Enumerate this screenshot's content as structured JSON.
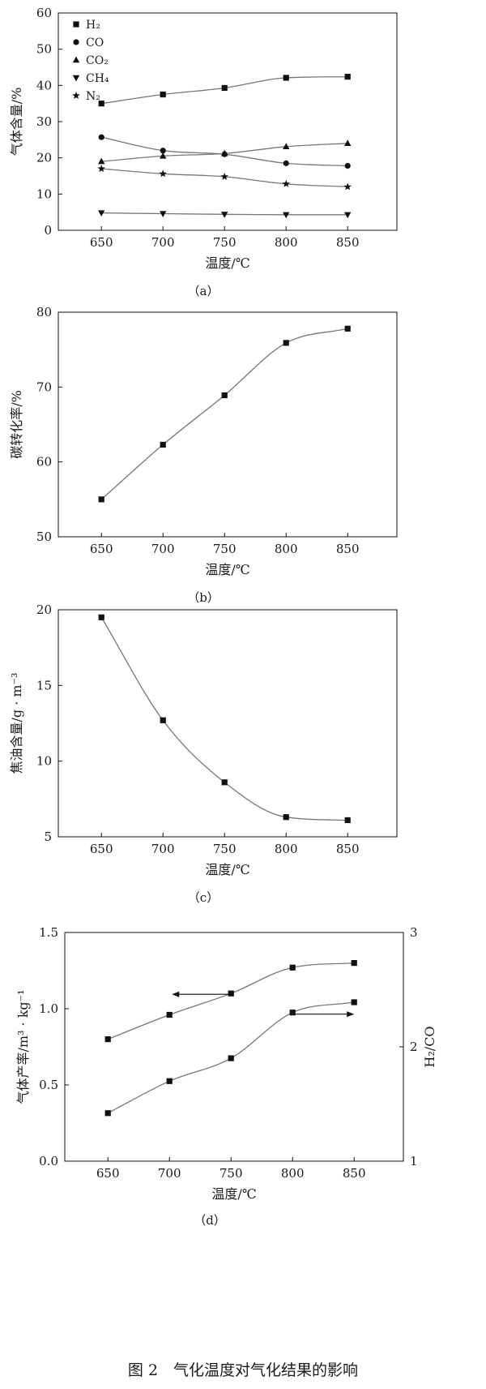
{
  "caption": "图 2　气化温度对气化结果的影响",
  "chart_data": [
    {
      "type": "line",
      "panel_label": "（a）",
      "xlabel": "温度/℃",
      "ylabel": "气体含量/%",
      "x": [
        650,
        700,
        750,
        800,
        850
      ],
      "xticks": [
        "650",
        "700",
        "750",
        "800",
        "850"
      ],
      "xlim": [
        615,
        890
      ],
      "ylim": [
        0,
        60
      ],
      "yticks": [
        "0",
        "10",
        "20",
        "30",
        "40",
        "50",
        "60"
      ],
      "grid": false,
      "legend_position": "top-left",
      "series": [
        {
          "name": "H₂",
          "marker": "square",
          "values": [
            35,
            37.5,
            39.3,
            42.1,
            42.4
          ]
        },
        {
          "name": "CO",
          "marker": "circle",
          "values": [
            25.7,
            22,
            21,
            18.5,
            17.8
          ]
        },
        {
          "name": "CO₂",
          "marker": "triangle-up",
          "values": [
            19,
            20.5,
            21.2,
            23.1,
            24
          ]
        },
        {
          "name": "CH₄",
          "marker": "triangle-down",
          "values": [
            4.8,
            4.6,
            4.4,
            4.3,
            4.3
          ]
        },
        {
          "name": "N₂",
          "marker": "star",
          "values": [
            17,
            15.6,
            14.8,
            12.8,
            12
          ]
        }
      ]
    },
    {
      "type": "scatter",
      "panel_label": "（b）",
      "xlabel": "温度/℃",
      "ylabel": "碳转化率/%",
      "x": [
        650,
        700,
        750,
        800,
        850
      ],
      "xticks": [
        "650",
        "700",
        "750",
        "800",
        "850"
      ],
      "xlim": [
        615,
        890
      ],
      "ylim": [
        50,
        80
      ],
      "yticks": [
        "50",
        "60",
        "70",
        "80"
      ],
      "grid": false,
      "series": [
        {
          "marker": "square",
          "values": [
            55,
            62.3,
            68.9,
            75.9,
            77.8
          ]
        }
      ]
    },
    {
      "type": "scatter",
      "panel_label": "（c）",
      "xlabel": "温度/℃",
      "ylabel": "焦油含量/g · m⁻³",
      "x": [
        650,
        700,
        750,
        800,
        850
      ],
      "xticks": [
        "650",
        "700",
        "750",
        "800",
        "850"
      ],
      "xlim": [
        615,
        890
      ],
      "ylim": [
        5,
        20
      ],
      "yticks": [
        "5",
        "10",
        "15",
        "20"
      ],
      "grid": false,
      "series": [
        {
          "marker": "square",
          "values": [
            19.5,
            12.7,
            8.6,
            6.3,
            6.1
          ]
        }
      ]
    },
    {
      "type": "scatter",
      "panel_label": "（d）",
      "xlabel": "温度/℃",
      "ylabel": "气体产率/m³ · kg⁻¹",
      "ylabel_right": "H₂/CO",
      "x": [
        650,
        700,
        750,
        800,
        850
      ],
      "xticks": [
        "650",
        "700",
        "750",
        "800",
        "850"
      ],
      "xlim": [
        615,
        890
      ],
      "ylim": [
        0,
        1.5
      ],
      "yticks": [
        "0.0",
        "0.5",
        "1.0",
        "1.5"
      ],
      "ylim_right": [
        1,
        3
      ],
      "yticks_right": [
        "1",
        "2",
        "3"
      ],
      "grid": false,
      "series": [
        {
          "axis": "left",
          "marker": "square",
          "arrow": "left",
          "values": [
            0.8,
            0.96,
            1.1,
            1.27,
            1.3
          ]
        },
        {
          "axis": "right",
          "marker": "square",
          "arrow": "right",
          "values": [
            1.42,
            1.7,
            1.9,
            2.3,
            2.39
          ]
        }
      ]
    }
  ]
}
